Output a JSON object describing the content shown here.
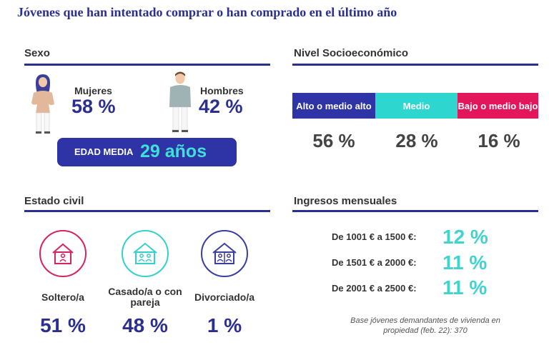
{
  "title": "Jóvenes que han intentado comprar o han comprado en el último año",
  "sexo": {
    "title": "Sexo",
    "mujeres": {
      "label": "Mujeres",
      "value": "58 %"
    },
    "hombres": {
      "label": "Hombres",
      "value": "42 %"
    },
    "edad_media": {
      "label": "EDAD MEDIA",
      "value": "29 años"
    }
  },
  "nivel": {
    "title": "Nivel Socioeconómico",
    "segments": [
      {
        "label": "Alto o medio alto",
        "value": "56 %",
        "color": "#2e33a6"
      },
      {
        "label": "Medio",
        "value": "28 %",
        "color": "#2ed6d0"
      },
      {
        "label": "Bajo o medio bajo",
        "value": "16 %",
        "color": "#e3165b"
      }
    ]
  },
  "estado_civil": {
    "title": "Estado civil",
    "items": [
      {
        "label": "Soltero/a",
        "value": "51 %",
        "color": "#d6245f",
        "icon": "house-single-icon"
      },
      {
        "label": "Casado/a o con pareja",
        "value": "48 %",
        "color": "#36d0cc",
        "icon": "house-couple-icon"
      },
      {
        "label": "Divorciado/a",
        "value": "1 %",
        "color": "#3a3ea0",
        "icon": "house-divorced-icon"
      }
    ]
  },
  "ingresos": {
    "title": "Ingresos mensuales",
    "rows": [
      {
        "label": "De 1001 € a 1500 €:",
        "value": "12 %"
      },
      {
        "label": "De 1501 € a 2000 €:",
        "value": "11 %"
      },
      {
        "label": "De 2001 € a 2500 €:",
        "value": "11 %"
      }
    ]
  },
  "note": "Base jóvenes demandantes de vivienda en propiedad (feb. 22): 370"
}
